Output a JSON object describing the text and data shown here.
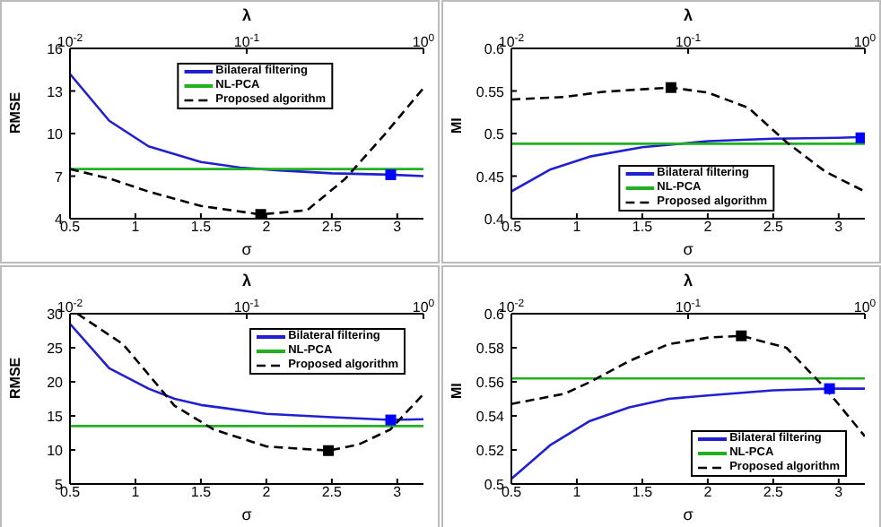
{
  "chart_data": [
    {
      "type": "line",
      "xlabel": "σ",
      "ylabel": "RMSE",
      "x2label": "λ",
      "xlim": [
        0.5,
        3.2
      ],
      "xticks": [
        0.5,
        1,
        1.5,
        2,
        2.5,
        3
      ],
      "ylim": [
        4,
        16
      ],
      "yticks": [
        4,
        7,
        10,
        13,
        16
      ],
      "x2lim": [
        0.01,
        1
      ],
      "x2ticks": [
        {
          "value": 0.01,
          "label": "10$^{-2}$"
        },
        {
          "value": 0.1,
          "label": "10$^{-1}$"
        },
        {
          "value": 1,
          "label": "10$^{0}$"
        }
      ],
      "log": "x2",
      "legend": "top",
      "series": [
        {
          "name": "Bilateral filtering",
          "color": "#2020d0",
          "x": [
            0.5,
            0.8,
            1.1,
            1.5,
            1.8,
            2.1,
            2.5,
            2.95,
            3.2
          ],
          "values": [
            14.2,
            10.9,
            9.1,
            8.0,
            7.6,
            7.4,
            7.2,
            7.1,
            7.0
          ]
        },
        {
          "name": "NL-PCA",
          "color": "#20b020",
          "x": [
            0.5,
            3.2
          ],
          "values": [
            7.5,
            7.5
          ]
        },
        {
          "name": "Proposed algorithm",
          "color": "#000000",
          "line_style": "dashed",
          "axis": "x2",
          "x": [
            0.01,
            0.017,
            0.028,
            0.055,
            0.12,
            0.22,
            0.36,
            0.6,
            1
          ],
          "values": [
            7.5,
            6.8,
            5.9,
            4.9,
            4.3,
            4.6,
            6.8,
            9.9,
            13.2
          ]
        },
        {
          "type": "scatter",
          "marker": "square",
          "color": "#0000ff",
          "x": [
            2.95
          ],
          "values": [
            7.1
          ]
        },
        {
          "type": "scatter",
          "marker": "square",
          "color": "#000000",
          "axis": "x2",
          "x": [
            0.12
          ],
          "values": [
            4.3
          ]
        }
      ]
    },
    {
      "type": "line",
      "xlabel": "σ",
      "ylabel": "MI",
      "x2label": "λ",
      "xlim": [
        0.5,
        3.2
      ],
      "xticks": [
        0.5,
        1,
        1.5,
        2,
        2.5,
        3
      ],
      "ylim": [
        0.4,
        0.6
      ],
      "yticks": [
        0.4,
        0.45,
        0.5,
        0.55,
        0.6
      ],
      "x2lim": [
        0.01,
        1
      ],
      "x2ticks": [
        {
          "value": 0.01,
          "label": "10$^{-2}$"
        },
        {
          "value": 0.1,
          "label": "10$^{-1}$"
        },
        {
          "value": 1,
          "label": "10$^{0}$"
        }
      ],
      "log": "x2",
      "legend": "bottom",
      "series": [
        {
          "name": "Bilateral filtering",
          "color": "#2020d0",
          "x": [
            0.5,
            0.8,
            1.1,
            1.5,
            1.65,
            2.0,
            2.5,
            3.0,
            3.2
          ],
          "values": [
            0.432,
            0.458,
            0.473,
            0.484,
            0.486,
            0.491,
            0.494,
            0.495,
            0.496
          ]
        },
        {
          "name": "NL-PCA",
          "color": "#20b020",
          "x": [
            0.5,
            3.2
          ],
          "values": [
            0.488,
            0.488
          ]
        },
        {
          "name": "Proposed algorithm",
          "color": "#000000",
          "line_style": "dashed",
          "axis": "x2",
          "x": [
            0.01,
            0.02,
            0.033,
            0.055,
            0.08,
            0.13,
            0.22,
            0.36,
            0.6,
            1
          ],
          "values": [
            0.54,
            0.543,
            0.549,
            0.552,
            0.554,
            0.548,
            0.53,
            0.49,
            0.455,
            0.432
          ]
        },
        {
          "type": "scatter",
          "marker": "square",
          "color": "#0000ff",
          "x": [
            3.17
          ],
          "values": [
            0.495
          ]
        },
        {
          "type": "scatter",
          "marker": "square",
          "color": "#000000",
          "axis": "x2",
          "x": [
            0.08
          ],
          "values": [
            0.554
          ]
        }
      ]
    },
    {
      "type": "line",
      "xlabel": "σ",
      "ylabel": "RMSE",
      "x2label": "λ",
      "xlim": [
        0.5,
        3.2
      ],
      "xticks": [
        0.5,
        1,
        1.5,
        2,
        2.5,
        3
      ],
      "ylim": [
        5,
        30
      ],
      "yticks": [
        5,
        10,
        15,
        20,
        25,
        30
      ],
      "x2lim": [
        0.01,
        1
      ],
      "x2ticks": [
        {
          "value": 0.01,
          "label": "10$^{-2}$"
        },
        {
          "value": 0.1,
          "label": "10$^{-1}$"
        },
        {
          "value": 1,
          "label": "10$^{0}$"
        }
      ],
      "log": "x2",
      "legend": "top right",
      "series": [
        {
          "name": "Bilateral filtering",
          "color": "#2020d0",
          "x": [
            0.5,
            0.8,
            1.1,
            1.3,
            1.5,
            2.0,
            2.5,
            2.95,
            3.2
          ],
          "values": [
            28.5,
            22,
            19,
            17.5,
            16.6,
            15.3,
            14.8,
            14.4,
            14.5
          ]
        },
        {
          "name": "NL-PCA",
          "color": "#20b020",
          "x": [
            0.5,
            3.2
          ],
          "values": [
            13.5,
            13.5
          ]
        },
        {
          "name": "Proposed algorithm",
          "color": "#000000",
          "line_style": "dashed",
          "axis": "x2",
          "x": [
            0.011,
            0.02,
            0.028,
            0.039,
            0.065,
            0.13,
            0.29,
            0.43,
            0.65,
            1
          ],
          "values": [
            30,
            25.5,
            21,
            16.5,
            13,
            10.5,
            9.9,
            10.8,
            13,
            18.2
          ]
        },
        {
          "type": "scatter",
          "marker": "square",
          "color": "#0000ff",
          "x": [
            2.95
          ],
          "values": [
            14.4
          ]
        },
        {
          "type": "scatter",
          "marker": "square",
          "color": "#000000",
          "axis": "x2",
          "x": [
            0.29
          ],
          "values": [
            9.9
          ]
        }
      ]
    },
    {
      "type": "line",
      "xlabel": "σ",
      "ylabel": "MI",
      "x2label": "λ",
      "xlim": [
        0.5,
        3.2
      ],
      "xticks": [
        0.5,
        1,
        1.5,
        2,
        2.5,
        3
      ],
      "ylim": [
        0.5,
        0.6
      ],
      "yticks": [
        0.5,
        0.52,
        0.54,
        0.56,
        0.58,
        0.6
      ],
      "x2lim": [
        0.01,
        1
      ],
      "x2ticks": [
        {
          "value": 0.01,
          "label": "10$^{-2}$"
        },
        {
          "value": 0.1,
          "label": "10$^{-1}$"
        },
        {
          "value": 1,
          "label": "10$^{0}$"
        }
      ],
      "log": "x2",
      "legend": "bottom right",
      "series": [
        {
          "name": "Bilateral filtering",
          "color": "#2020d0",
          "x": [
            0.5,
            0.8,
            1.1,
            1.4,
            1.7,
            2.0,
            2.5,
            2.93,
            3.2
          ],
          "values": [
            0.503,
            0.523,
            0.537,
            0.545,
            0.55,
            0.552,
            0.555,
            0.556,
            0.556
          ]
        },
        {
          "name": "NL-PCA",
          "color": "#20b020",
          "x": [
            0.5,
            3.2
          ],
          "values": [
            0.562,
            0.562
          ]
        },
        {
          "name": "Proposed algorithm",
          "color": "#000000",
          "line_style": "dashed",
          "axis": "x2",
          "x": [
            0.01,
            0.02,
            0.028,
            0.046,
            0.077,
            0.13,
            0.2,
            0.36,
            0.6,
            1
          ],
          "values": [
            0.547,
            0.553,
            0.56,
            0.572,
            0.582,
            0.586,
            0.587,
            0.58,
            0.556,
            0.528
          ]
        },
        {
          "type": "scatter",
          "marker": "square",
          "color": "#0000ff",
          "x": [
            2.93
          ],
          "values": [
            0.556
          ]
        },
        {
          "type": "scatter",
          "marker": "square",
          "color": "#000000",
          "axis": "x2",
          "x": [
            0.2
          ],
          "values": [
            0.587
          ]
        }
      ]
    }
  ]
}
